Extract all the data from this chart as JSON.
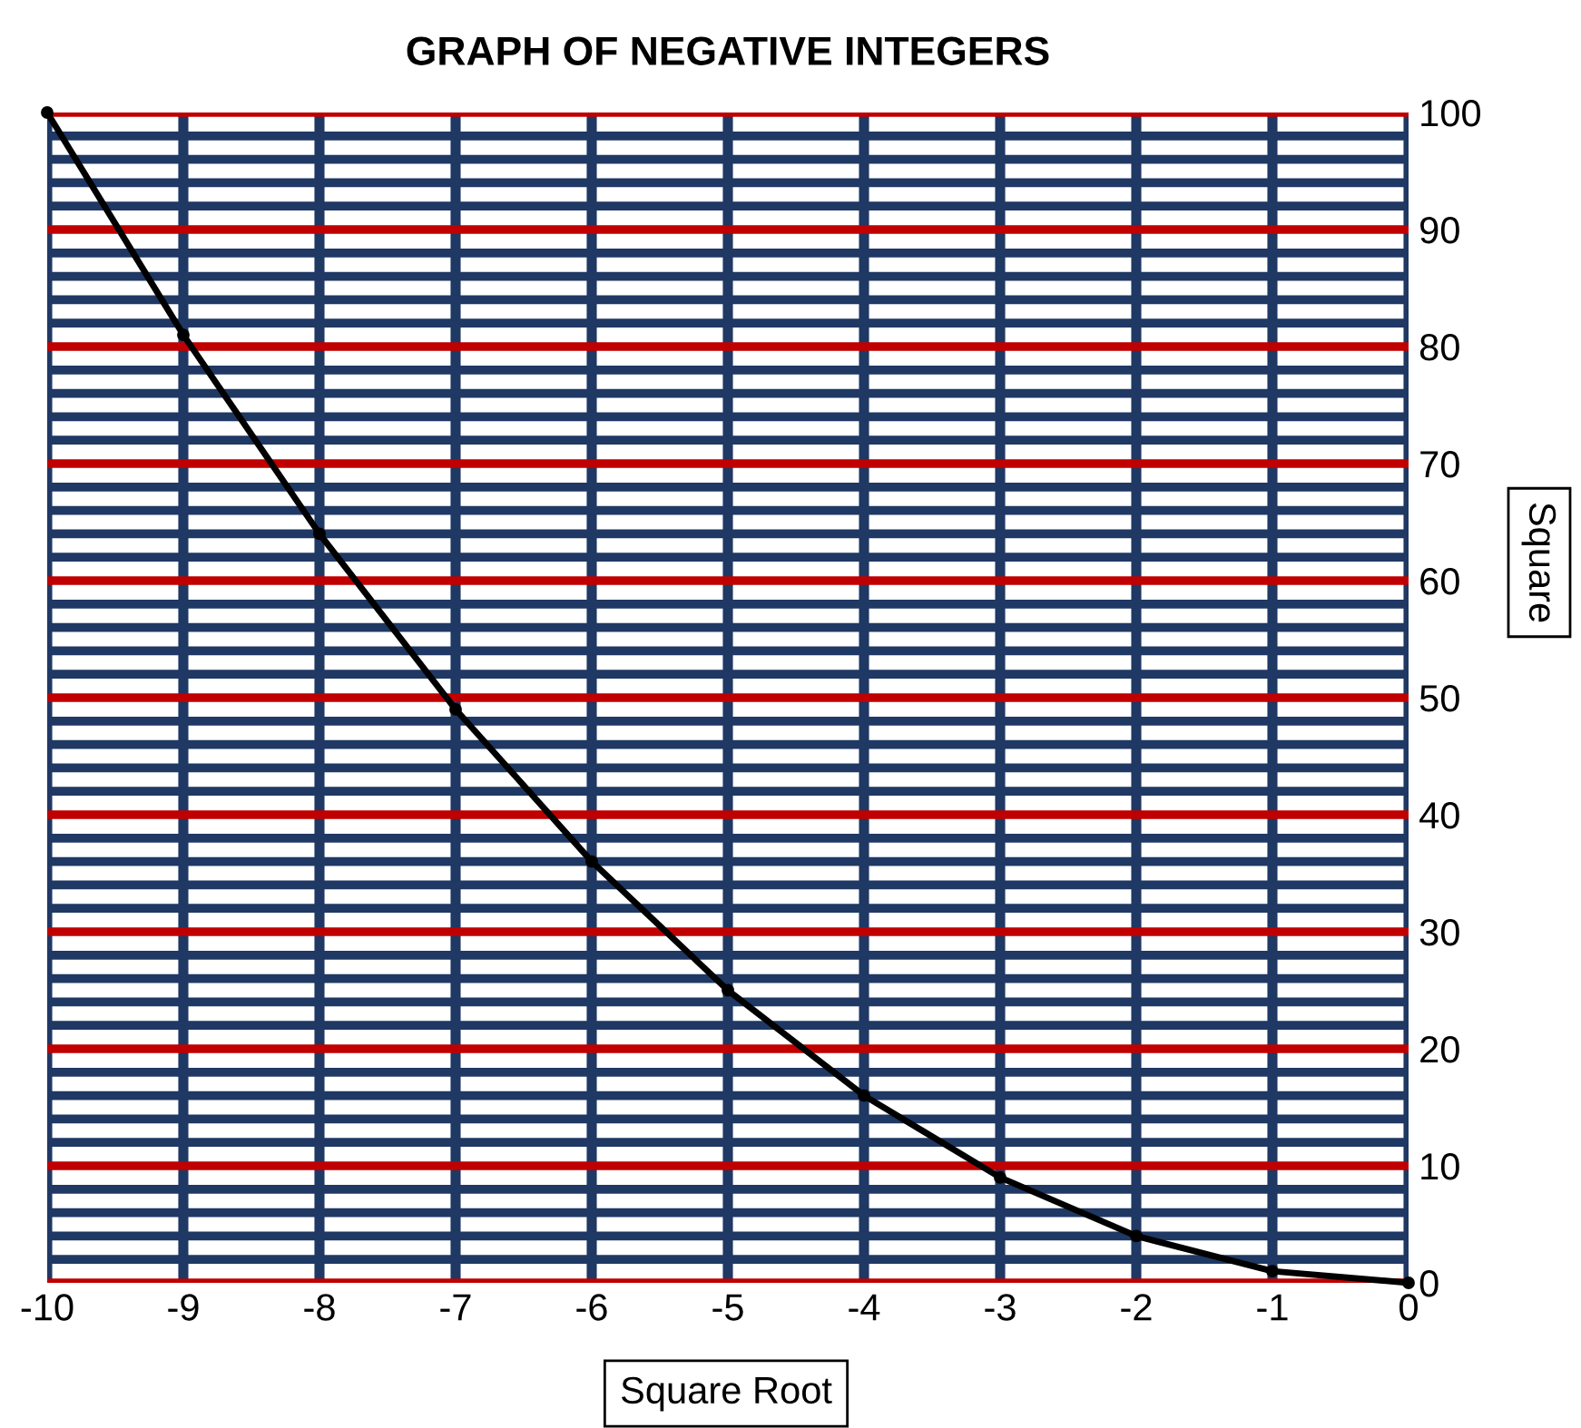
{
  "chart_data": {
    "type": "line",
    "title": "GRAPH OF NEGATIVE INTEGERS",
    "xlabel": "Square Root",
    "ylabel": "Square",
    "x": [
      -10,
      -9,
      -8,
      -7,
      -6,
      -5,
      -4,
      -3,
      -2,
      -1,
      0
    ],
    "series": [
      {
        "color": "#000000",
        "values": [
          100,
          81,
          64,
          49,
          36,
          25,
          16,
          9,
          4,
          1,
          0
        ]
      }
    ],
    "xlim": [
      -10,
      0
    ],
    "ylim": [
      0,
      100
    ],
    "xticks": [
      {
        "value": -10,
        "label": "-10"
      },
      {
        "value": -9,
        "label": "-9"
      },
      {
        "value": -8,
        "label": "-8"
      },
      {
        "value": -7,
        "label": "-7"
      },
      {
        "value": -6,
        "label": "-6"
      },
      {
        "value": -5,
        "label": "-5"
      },
      {
        "value": -4,
        "label": "-4"
      },
      {
        "value": -3,
        "label": "-3"
      },
      {
        "value": -2,
        "label": "-2"
      },
      {
        "value": -1,
        "label": "-1"
      },
      {
        "value": 0,
        "label": "0"
      }
    ],
    "yticks": [
      0,
      10,
      20,
      30,
      40,
      50,
      60,
      70,
      80,
      90,
      100
    ],
    "ref_lines": [
      {
        "axis": "y",
        "value": 2,
        "color": "#1f3864"
      },
      {
        "axis": "y",
        "value": 4,
        "color": "#1f3864"
      },
      {
        "axis": "y",
        "value": 6,
        "color": "#1f3864"
      },
      {
        "axis": "y",
        "value": 8,
        "color": "#1f3864"
      },
      {
        "axis": "y",
        "value": 12,
        "color": "#1f3864"
      },
      {
        "axis": "y",
        "value": 14,
        "color": "#1f3864"
      },
      {
        "axis": "y",
        "value": 16,
        "color": "#1f3864"
      },
      {
        "axis": "y",
        "value": 18,
        "color": "#1f3864"
      },
      {
        "axis": "y",
        "value": 22,
        "color": "#1f3864"
      },
      {
        "axis": "y",
        "value": 24,
        "color": "#1f3864"
      },
      {
        "axis": "y",
        "value": 26,
        "color": "#1f3864"
      },
      {
        "axis": "y",
        "value": 28,
        "color": "#1f3864"
      },
      {
        "axis": "y",
        "value": 32,
        "color": "#1f3864"
      },
      {
        "axis": "y",
        "value": 34,
        "color": "#1f3864"
      },
      {
        "axis": "y",
        "value": 36,
        "color": "#1f3864"
      },
      {
        "axis": "y",
        "value": 38,
        "color": "#1f3864"
      },
      {
        "axis": "y",
        "value": 42,
        "color": "#1f3864"
      },
      {
        "axis": "y",
        "value": 44,
        "color": "#1f3864"
      },
      {
        "axis": "y",
        "value": 46,
        "color": "#1f3864"
      },
      {
        "axis": "y",
        "value": 48,
        "color": "#1f3864"
      },
      {
        "axis": "y",
        "value": 52,
        "color": "#1f3864"
      },
      {
        "axis": "y",
        "value": 54,
        "color": "#1f3864"
      },
      {
        "axis": "y",
        "value": 56,
        "color": "#1f3864"
      },
      {
        "axis": "y",
        "value": 58,
        "color": "#1f3864"
      },
      {
        "axis": "y",
        "value": 62,
        "color": "#1f3864"
      },
      {
        "axis": "y",
        "value": 64,
        "color": "#1f3864"
      },
      {
        "axis": "y",
        "value": 66,
        "color": "#1f3864"
      },
      {
        "axis": "y",
        "value": 68,
        "color": "#1f3864"
      },
      {
        "axis": "y",
        "value": 72,
        "color": "#1f3864"
      },
      {
        "axis": "y",
        "value": 74,
        "color": "#1f3864"
      },
      {
        "axis": "y",
        "value": 76,
        "color": "#1f3864"
      },
      {
        "axis": "y",
        "value": 78,
        "color": "#1f3864"
      },
      {
        "axis": "y",
        "value": 82,
        "color": "#1f3864"
      },
      {
        "axis": "y",
        "value": 84,
        "color": "#1f3864"
      },
      {
        "axis": "y",
        "value": 86,
        "color": "#1f3864"
      },
      {
        "axis": "y",
        "value": 88,
        "color": "#1f3864"
      },
      {
        "axis": "y",
        "value": 92,
        "color": "#1f3864"
      },
      {
        "axis": "y",
        "value": 94,
        "color": "#1f3864"
      },
      {
        "axis": "y",
        "value": 96,
        "color": "#1f3864"
      },
      {
        "axis": "y",
        "value": 98,
        "color": "#1f3864"
      }
    ],
    "grid": true,
    "marker": "circle",
    "line_style": "solid",
    "legend": false
  }
}
